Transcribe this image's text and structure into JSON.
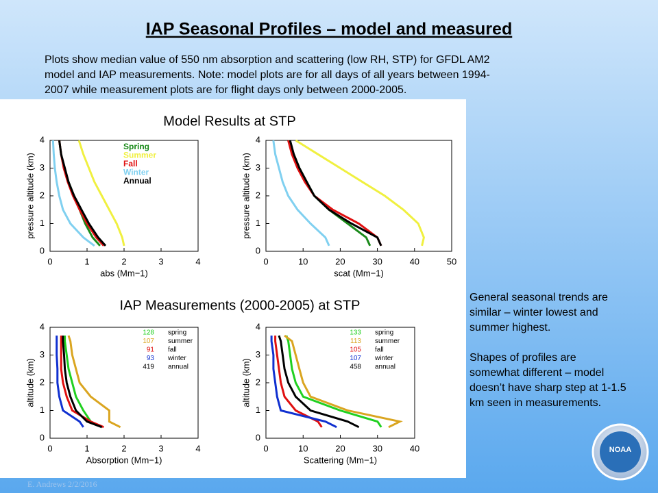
{
  "title": "IAP Seasonal Profiles – model and measured",
  "intro": [
    "Plots show median value of 550 nm absorption and scattering (low RH, STP) for GFDL AM2",
    "model and IAP measurements.  Note: model plots are for all days of all years between 1994-",
    "2007 while measurement plots are for flight days only between 2000-2005."
  ],
  "notes": [
    [
      "General seasonal trends are",
      "similar – winter lowest and",
      "summer highest."
    ],
    [
      "Shapes of profiles are",
      "somewhat different – model",
      "doesn’t have sharp step at 1-1.5",
      "km seen in measurements."
    ]
  ],
  "footer": "E. Andrews   2/2/2016",
  "logo": "NOAA",
  "section_titles": [
    "Model Results at STP",
    "IAP Measurements (2000-2005)  at STP"
  ],
  "chart_data": [
    {
      "type": "line",
      "x_label": "abs (Mm−1)",
      "y_label": "pressure altitude (km)",
      "xlim": [
        0,
        4
      ],
      "xticks": [
        0,
        1,
        2,
        3,
        4
      ],
      "ylim": [
        0,
        4
      ],
      "yticks": [
        0,
        1,
        2,
        3,
        4
      ],
      "series": [
        {
          "name": "Spring",
          "color": "#1a8a1a",
          "x": [
            1.35,
            1.15,
            0.95,
            0.8,
            0.65,
            0.5,
            0.38,
            0.3,
            0.25
          ],
          "values": [
            0.2,
            0.5,
            1,
            1.5,
            2,
            2.5,
            3,
            3.5,
            4
          ]
        },
        {
          "name": "Summer",
          "color": "#f0f040",
          "x": [
            2.0,
            1.95,
            1.8,
            1.6,
            1.4,
            1.2,
            1.05,
            0.9,
            0.78
          ],
          "values": [
            0.2,
            0.5,
            1,
            1.5,
            2,
            2.5,
            3,
            3.5,
            4
          ]
        },
        {
          "name": "Fall",
          "color": "#e01010",
          "x": [
            1.45,
            1.25,
            1.0,
            0.8,
            0.62,
            0.48,
            0.37,
            0.3,
            0.25
          ],
          "values": [
            0.2,
            0.5,
            1,
            1.5,
            2,
            2.5,
            3,
            3.5,
            4
          ]
        },
        {
          "name": "Winter",
          "color": "#80d0f0",
          "x": [
            1.2,
            0.9,
            0.55,
            0.35,
            0.25,
            0.18,
            0.13,
            0.1,
            0.08
          ],
          "values": [
            0.2,
            0.5,
            1,
            1.5,
            2,
            2.5,
            3,
            3.5,
            4
          ]
        },
        {
          "name": "Annual",
          "color": "#000000",
          "x": [
            1.5,
            1.3,
            1.05,
            0.85,
            0.65,
            0.5,
            0.4,
            0.3,
            0.25
          ],
          "values": [
            0.2,
            0.5,
            1,
            1.5,
            2,
            2.5,
            3,
            3.5,
            4
          ]
        }
      ]
    },
    {
      "type": "line",
      "x_label": "scat (Mm−1)",
      "y_label": "pressure altitude (km)",
      "xlim": [
        0,
        50
      ],
      "xticks": [
        0,
        10,
        20,
        30,
        40,
        50
      ],
      "ylim": [
        0,
        4
      ],
      "yticks": [
        0,
        1,
        2,
        3,
        4
      ],
      "series": [
        {
          "color": "#1a8a1a",
          "x": [
            28,
            27,
            22,
            17,
            13,
            11,
            9,
            7.5,
            6
          ],
          "values": [
            0.2,
            0.5,
            1,
            1.5,
            2,
            2.5,
            3,
            3.5,
            4
          ]
        },
        {
          "color": "#f0f040",
          "x": [
            42,
            42.5,
            41,
            37,
            32,
            26,
            20,
            14,
            8
          ],
          "values": [
            0.2,
            0.5,
            1,
            1.5,
            2,
            2.5,
            3,
            3.5,
            4
          ]
        },
        {
          "color": "#e01010",
          "x": [
            31,
            30,
            25,
            18,
            13,
            10.5,
            8.5,
            7,
            6
          ],
          "values": [
            0.2,
            0.5,
            1,
            1.5,
            2,
            2.5,
            3,
            3.5,
            4
          ]
        },
        {
          "color": "#80d0f0",
          "x": [
            17,
            16,
            12,
            8.5,
            6,
            4.5,
            3.5,
            2.5,
            2
          ],
          "values": [
            0.2,
            0.5,
            1,
            1.5,
            2,
            2.5,
            3,
            3.5,
            4
          ]
        },
        {
          "color": "#000000",
          "x": [
            31,
            30,
            23,
            17,
            13,
            11,
            9,
            7.5,
            6.5
          ],
          "values": [
            0.2,
            0.5,
            1,
            1.5,
            2,
            2.5,
            3,
            3.5,
            4
          ]
        }
      ]
    },
    {
      "type": "line",
      "x_label": "Absorption (Mm−1)",
      "y_label": "altitude (km)",
      "xlim": [
        0,
        4
      ],
      "xticks": [
        0,
        1,
        2,
        3,
        4
      ],
      "ylim": [
        0,
        4
      ],
      "yticks": [
        0,
        1,
        2,
        3,
        4
      ],
      "series": [
        {
          "name": "spring",
          "count": 128,
          "color": "#20d020",
          "x": [
            1.4,
            1.1,
            0.9,
            0.7,
            0.6,
            0.5,
            0.45,
            0.4,
            0.4
          ],
          "values": [
            0.4,
            0.6,
            1,
            1.5,
            2,
            2.5,
            3,
            3.5,
            3.7
          ]
        },
        {
          "name": "summer",
          "count": 107,
          "color": "#daa520",
          "x": [
            1.9,
            1.6,
            1.6,
            1.1,
            0.8,
            0.7,
            0.6,
            0.55,
            0.5
          ],
          "values": [
            0.4,
            0.6,
            1,
            1.5,
            2,
            2.5,
            3,
            3.5,
            3.7
          ]
        },
        {
          "name": "fall",
          "count": 91,
          "color": "#e01010",
          "x": [
            1.45,
            1.1,
            0.6,
            0.45,
            0.35,
            0.3,
            0.3,
            0.3,
            0.3
          ],
          "values": [
            0.4,
            0.6,
            1,
            1.5,
            2,
            2.5,
            3,
            3.5,
            3.7
          ]
        },
        {
          "name": "winter",
          "count": 93,
          "color": "#1030d0",
          "x": [
            0.9,
            0.8,
            0.35,
            0.25,
            0.2,
            0.2,
            0.18,
            0.18,
            0.18
          ],
          "values": [
            0.4,
            0.6,
            1,
            1.5,
            2,
            2.5,
            3,
            3.5,
            3.7
          ]
        },
        {
          "name": "annual",
          "count": 419,
          "color": "#000000",
          "x": [
            1.4,
            1.0,
            0.7,
            0.55,
            0.45,
            0.4,
            0.38,
            0.35,
            0.35
          ],
          "values": [
            0.4,
            0.6,
            1,
            1.5,
            2,
            2.5,
            3,
            3.5,
            3.7
          ]
        }
      ]
    },
    {
      "type": "line",
      "x_label": "Scattering (Mm−1)",
      "y_label": "altitude (km)",
      "xlim": [
        0,
        40
      ],
      "xticks": [
        0,
        10,
        20,
        30,
        40
      ],
      "ylim": [
        0,
        4
      ],
      "yticks": [
        0,
        1,
        2,
        3,
        4
      ],
      "series": [
        {
          "name": "spring",
          "count": 133,
          "color": "#20d020",
          "x": [
            31,
            30,
            20,
            10,
            8,
            7,
            6.5,
            6,
            5.5
          ],
          "values": [
            0.4,
            0.6,
            1,
            1.5,
            2,
            2.5,
            3,
            3.5,
            3.7
          ]
        },
        {
          "name": "summer",
          "count": 113,
          "color": "#daa520",
          "x": [
            33,
            36,
            22,
            12,
            10,
            9,
            8,
            7,
            5
          ],
          "values": [
            0.4,
            0.6,
            1,
            1.5,
            2,
            2.5,
            3,
            3.5,
            3.7
          ]
        },
        {
          "name": "fall",
          "count": 105,
          "color": "#e01010",
          "x": [
            15,
            14,
            8,
            5,
            4,
            3.5,
            3,
            2.5,
            2.5
          ],
          "values": [
            0.4,
            0.6,
            1,
            1.5,
            2,
            2.5,
            3,
            3.5,
            3.7
          ]
        },
        {
          "name": "winter",
          "count": 107,
          "color": "#1030d0",
          "x": [
            19,
            16,
            4,
            3,
            2.5,
            2,
            2,
            1.5,
            1.5
          ],
          "values": [
            0.4,
            0.6,
            1,
            1.5,
            2,
            2.5,
            3,
            3.5,
            3.7
          ]
        },
        {
          "name": "annual",
          "count": 458,
          "color": "#000000",
          "x": [
            25,
            22,
            12,
            8,
            6,
            5,
            4.5,
            4,
            3.5
          ],
          "values": [
            0.4,
            0.6,
            1,
            1.5,
            2,
            2.5,
            3,
            3.5,
            3.7
          ]
        }
      ]
    }
  ]
}
